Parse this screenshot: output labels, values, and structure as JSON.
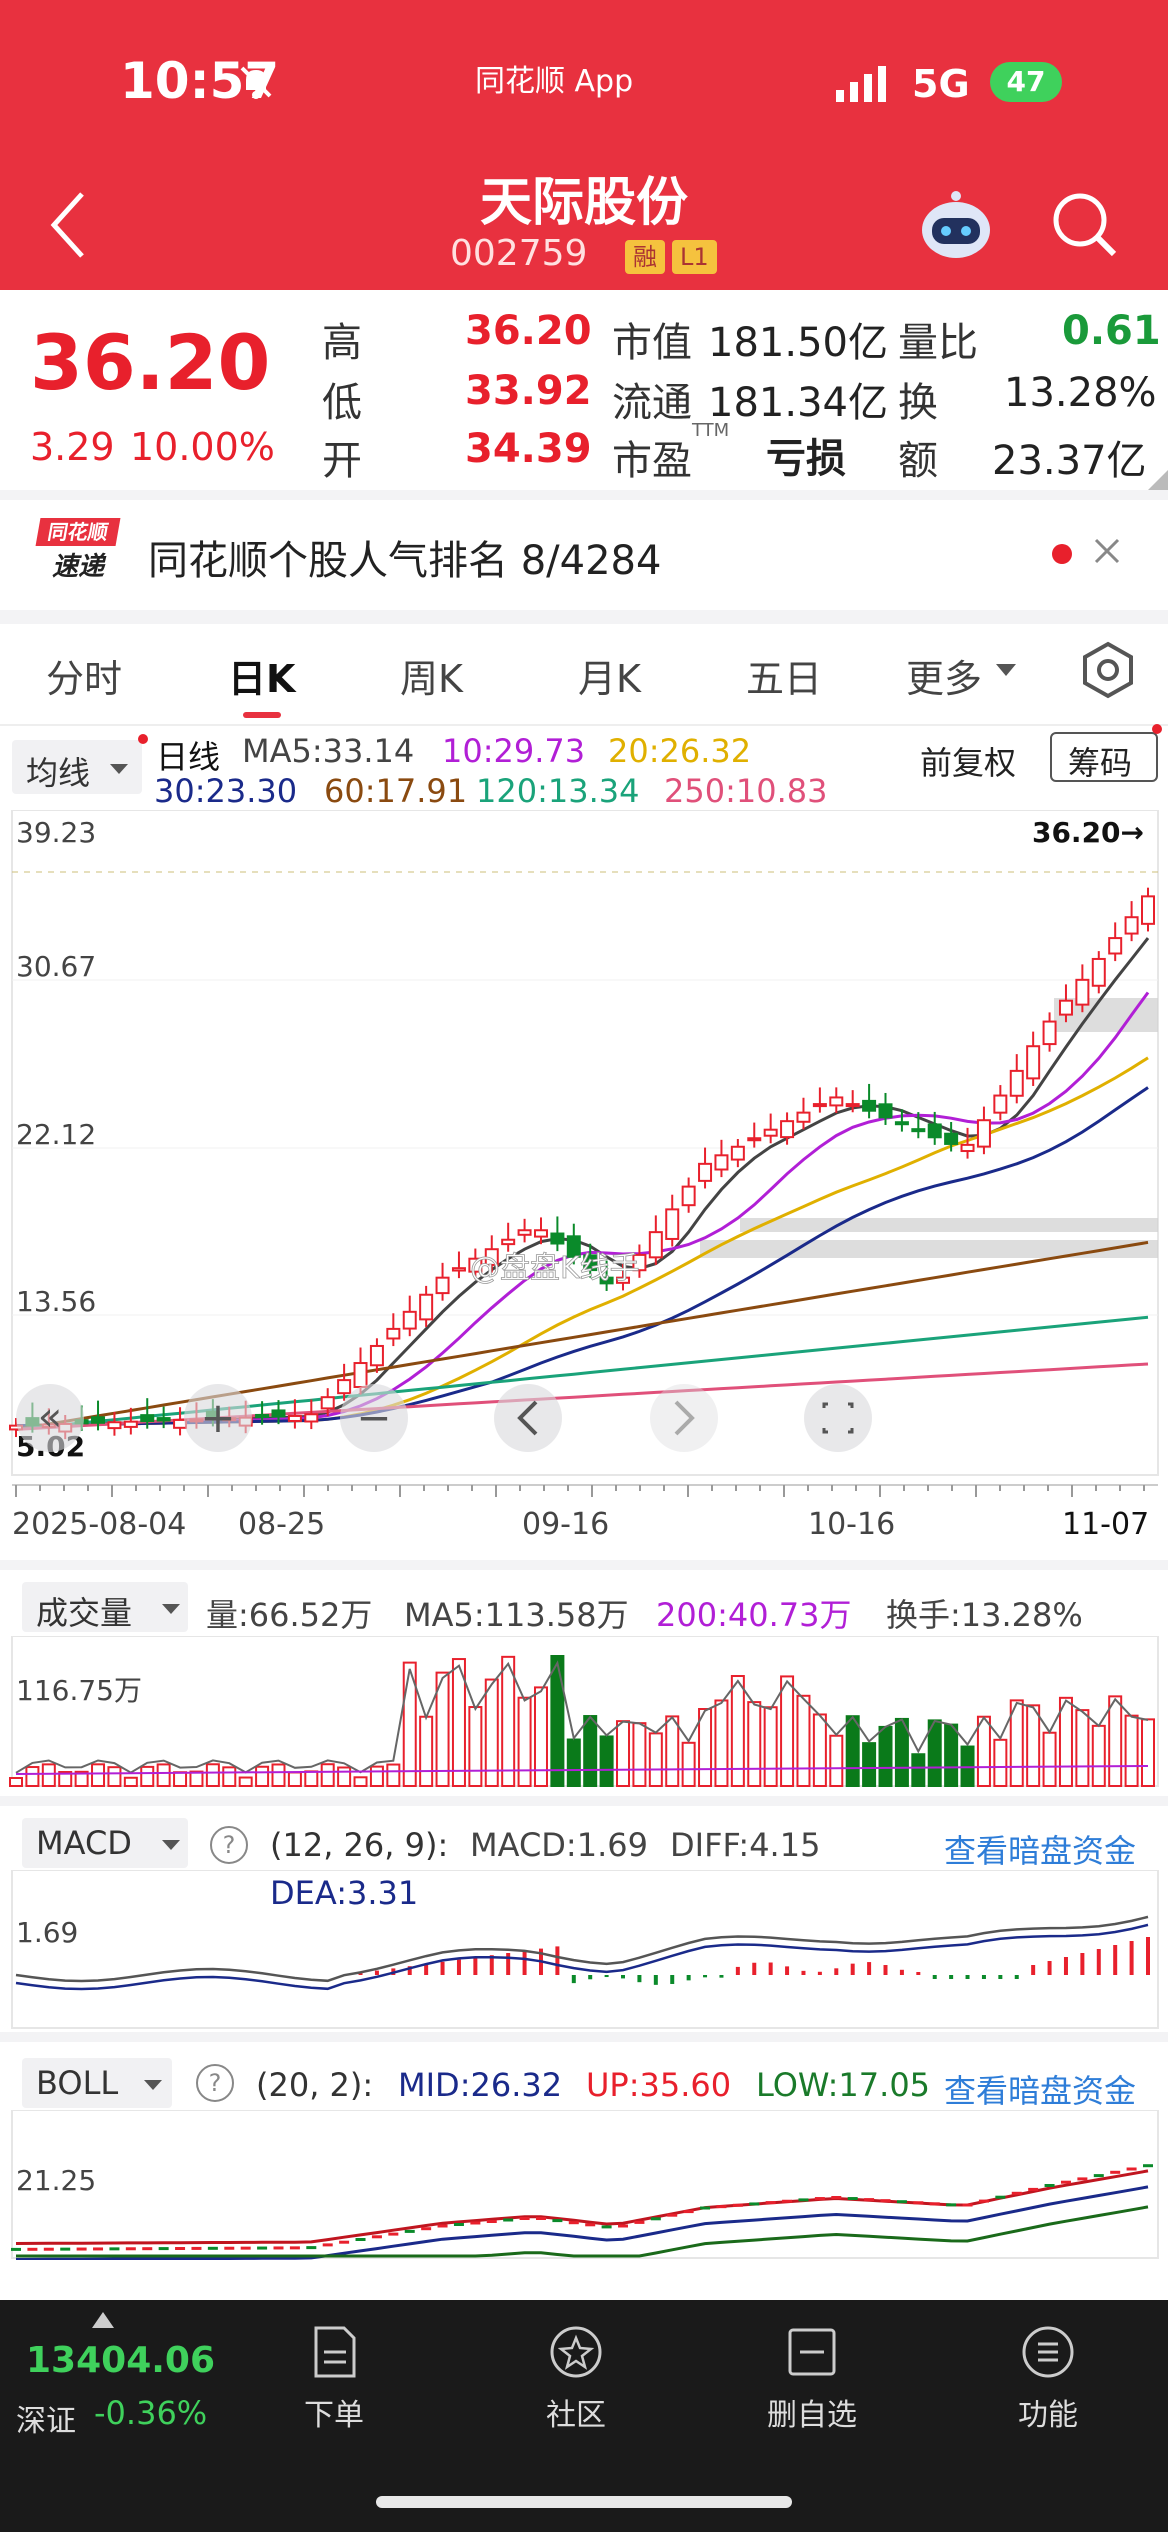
{
  "status_bar": {
    "time": "10:57",
    "app": "同花顺 App",
    "network": "5G",
    "battery": "47"
  },
  "header": {
    "title": "天际股份",
    "code": "002759",
    "tag1": "融",
    "tag2": "L1"
  },
  "quote": {
    "price": "36.20",
    "change": "3.29",
    "change_pct": "10.00%",
    "high_label": "高",
    "high": "36.20",
    "low_label": "低",
    "low": "33.92",
    "open_label": "开",
    "open": "34.39",
    "mcap_label": "市值",
    "mcap": "181.50亿",
    "float_label": "流通",
    "float": "181.34亿",
    "pe_label": "市盈",
    "pe_sup": "TTM",
    "pe": "亏损",
    "vr_label": "量比",
    "vr": "0.61",
    "turn_label": "换",
    "turn": "13.28%",
    "amt_label": "额",
    "amt": "23.37亿"
  },
  "banner": {
    "logo_top": "同花顺",
    "logo_bottom": "速递",
    "text": "同花顺个股人气排名 8/4284"
  },
  "tabs": [
    "分时",
    "日K",
    "周K",
    "月K",
    "五日",
    "更多"
  ],
  "kline": {
    "indicator_select": "均线",
    "period_label": "日线",
    "ma5": "MA5:33.14",
    "ma10": "10:29.73",
    "ma20": "20:26.32",
    "ma30": "30:23.30",
    "ma60": "60:17.91",
    "ma120": "120:13.34",
    "ma250": "250:10.83",
    "adjust": "前复权",
    "chip": "筹码",
    "y_top": "39.23",
    "y2": "30.67",
    "y3": "22.12",
    "y4": "13.56",
    "y_bottom": "5.02",
    "last_price_tag": "36.20→",
    "x_labels": [
      "2025-08-04",
      "08-25",
      "09-16",
      "10-16",
      "11-07"
    ],
    "watermark": "@盘盘K线手"
  },
  "volume": {
    "select": "成交量",
    "vol": "量:66.52万",
    "ma5": "MA5:113.58万",
    "ma200": "200:40.73万",
    "turnover": "换手:13.28%",
    "y_label": "116.75万"
  },
  "macd": {
    "select": "MACD",
    "params": "(12, 26, 9):",
    "macd": "MACD:1.69",
    "diff": "DIFF:4.15",
    "dea": "DEA:3.31",
    "link": "查看暗盘资金",
    "y_label": "1.69"
  },
  "boll": {
    "select": "BOLL",
    "params": "(20, 2):",
    "mid": "MID:26.32",
    "up": "UP:35.60",
    "low": "LOW:17.05",
    "link": "查看暗盘资金",
    "y_label": "21.25"
  },
  "bottom_bar": {
    "index_value": "13404.06",
    "index_name": "深证",
    "index_change": "-0.36%",
    "items": [
      "下单",
      "社区",
      "删自选",
      "功能"
    ]
  },
  "colors": {
    "accent": "#e8313f",
    "up": "#e8202c",
    "down": "#1a9a3a",
    "link": "#2e7dd8"
  }
}
